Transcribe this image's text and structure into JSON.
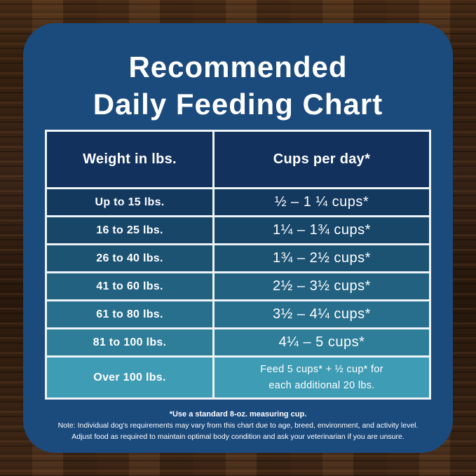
{
  "title": {
    "line1": "Recommended",
    "line2": "Daily Feeding Chart"
  },
  "table": {
    "headers": {
      "weight": "Weight in lbs.",
      "cups": "Cups per day*"
    },
    "rows": [
      {
        "weight": "Up to 15 lbs.",
        "cups": "½ – 1 ¼ cups*"
      },
      {
        "weight": "16 to 25 lbs.",
        "cups": "1¼ – 1¾ cups*"
      },
      {
        "weight": "26 to 40 lbs.",
        "cups": "1¾ – 2½ cups*"
      },
      {
        "weight": "41 to 60 lbs.",
        "cups": "2½ – 3½ cups*"
      },
      {
        "weight": "61 to 80 lbs.",
        "cups": "3½ – 4¼ cups*"
      },
      {
        "weight": "81 to 100 lbs.",
        "cups": "4¼ – 5 cups*"
      },
      {
        "weight": "Over 100 lbs.",
        "cups": "Feed 5 cups* + ½ cup* for\neach additional 20 lbs."
      }
    ],
    "header_color": "#12315c",
    "row_colors": [
      "#14395f",
      "#174669",
      "#1c5372",
      "#226180",
      "#286f8d",
      "#2e7d99",
      "#3f9cb5"
    ],
    "divider_color": "#eef3f6"
  },
  "footnotes": {
    "measuring_cup": "*Use a standard 8-oz. measuring cup.",
    "note_line1": "Note: Individual dog's requirements may vary from this chart due to age, breed, environment, and activity level.",
    "note_line2": "Adjust food as required to maintain optimal body condition and ask your veterinarian if you are unsure."
  },
  "colors": {
    "panel_background": "#1b4a7d",
    "wood_background": "#38220f",
    "text": "#ffffff"
  },
  "chart_data": {
    "type": "table",
    "title": "Recommended Daily Feeding Chart",
    "columns": [
      "Weight in lbs.",
      "Cups per day*"
    ],
    "rows": [
      [
        "Up to 15 lbs.",
        "½ – 1 ¼ cups*"
      ],
      [
        "16 to 25 lbs.",
        "1¼ – 1¾ cups*"
      ],
      [
        "26 to 40 lbs.",
        "1¾ – 2½ cups*"
      ],
      [
        "41 to 60 lbs.",
        "2½ – 3½ cups*"
      ],
      [
        "61 to 80 lbs.",
        "3½ – 4¼ cups*"
      ],
      [
        "81 to 100 lbs.",
        "4¼ – 5 cups*"
      ],
      [
        "Over 100 lbs.",
        "Feed 5 cups* + ½ cup* for each additional 20 lbs."
      ]
    ],
    "notes": [
      "*Use a standard 8-oz. measuring cup.",
      "Note: Individual dog's requirements may vary from this chart due to age, breed, environment, and activity level.",
      "Adjust food as required to maintain optimal body condition and ask your veterinarian if you are unsure."
    ]
  }
}
